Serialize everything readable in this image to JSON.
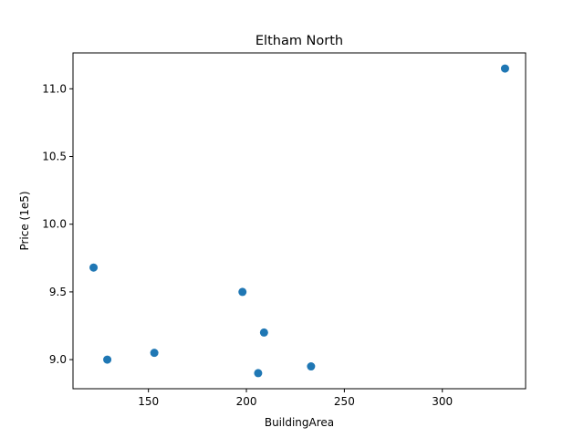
{
  "chart_data": {
    "type": "scatter",
    "title": "Eltham North",
    "xlabel": "BuildingArea",
    "ylabel": "Price (1e5)",
    "xlim": [
      111.5,
      342.5
    ],
    "ylim": [
      8.785,
      11.265
    ],
    "xticks": [
      150,
      200,
      250,
      300
    ],
    "xtick_labels": [
      "150",
      "200",
      "250",
      "300"
    ],
    "yticks": [
      9.0,
      9.5,
      10.0,
      10.5,
      11.0
    ],
    "ytick_labels": [
      "9.0",
      "9.5",
      "10.0",
      "10.5",
      "11.0"
    ],
    "grid": false,
    "marker_color": "#1f77b4",
    "points": [
      {
        "x": 122,
        "y": 9.68
      },
      {
        "x": 129,
        "y": 9.0
      },
      {
        "x": 153,
        "y": 9.05
      },
      {
        "x": 198,
        "y": 9.5
      },
      {
        "x": 206,
        "y": 8.9
      },
      {
        "x": 209,
        "y": 9.2
      },
      {
        "x": 233,
        "y": 8.95
      },
      {
        "x": 332,
        "y": 11.15
      }
    ]
  }
}
